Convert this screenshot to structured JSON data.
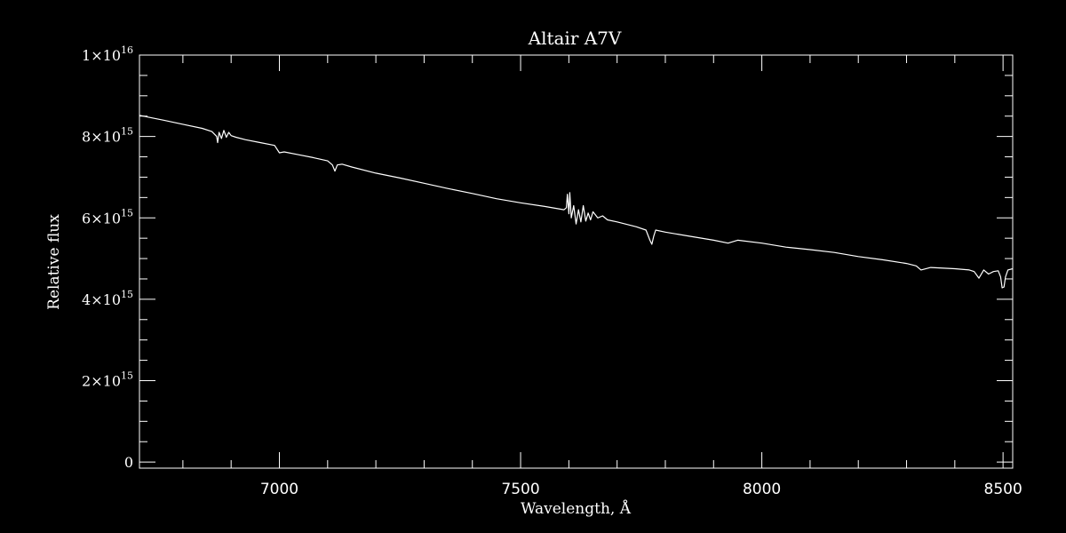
{
  "chart_data": {
    "type": "line",
    "title": "Altair   A7V",
    "xlabel": "Wavelength, Å",
    "ylabel": "Relative flux",
    "xlim": [
      6710,
      8520
    ],
    "ylim": [
      -150000000000000.0,
      1e+16
    ],
    "grid": false,
    "xticks": [
      {
        "value": 7000,
        "label": "7000"
      },
      {
        "value": 7500,
        "label": "7500"
      },
      {
        "value": 8000,
        "label": "8000"
      },
      {
        "value": 8500,
        "label": "8500"
      }
    ],
    "x_minor_step": 100,
    "yticks": [
      {
        "value": 0,
        "base": "0",
        "exp": ""
      },
      {
        "value": 2000000000000000.0,
        "base": "2×10",
        "exp": "15"
      },
      {
        "value": 4000000000000000.0,
        "base": "4×10",
        "exp": "15"
      },
      {
        "value": 6000000000000000.0,
        "base": "6×10",
        "exp": "15"
      },
      {
        "value": 8000000000000000.0,
        "base": "8×10",
        "exp": "15"
      },
      {
        "value": 1e+16,
        "base": "1×10",
        "exp": "16"
      }
    ],
    "y_minor_step": 500000000000000.0,
    "series": [
      {
        "color": "#ffffff",
        "x": [
          6710,
          6730,
          6760,
          6800,
          6840,
          6860,
          6870,
          6872,
          6875,
          6880,
          6885,
          6890,
          6895,
          6900,
          6910,
          6930,
          6960,
          6990,
          7000,
          7010,
          7040,
          7070,
          7100,
          7110,
          7115,
          7120,
          7130,
          7150,
          7200,
          7250,
          7300,
          7350,
          7400,
          7450,
          7500,
          7550,
          7590,
          7595,
          7597,
          7600,
          7602,
          7605,
          7610,
          7615,
          7620,
          7625,
          7630,
          7635,
          7640,
          7645,
          7650,
          7660,
          7670,
          7680,
          7700,
          7740,
          7760,
          7768,
          7772,
          7776,
          7780,
          7800,
          7850,
          7900,
          7930,
          7950,
          8000,
          8050,
          8100,
          8150,
          8200,
          8250,
          8300,
          8320,
          8330,
          8350,
          8400,
          8430,
          8440,
          8450,
          8460,
          8470,
          8480,
          8490,
          8495,
          8498,
          8502,
          8505,
          8510,
          8520
        ],
        "y": [
          8520000000000000.0,
          8470000000000000.0,
          8400000000000000.0,
          8300000000000000.0,
          8200000000000000.0,
          8120000000000000.0,
          8000000000000000.0,
          7850000000000000.0,
          8100000000000000.0,
          7950000000000000.0,
          8150000000000000.0,
          7980000000000000.0,
          8100000000000000.0,
          8020000000000000.0,
          7980000000000000.0,
          7920000000000000.0,
          7850000000000000.0,
          7780000000000000.0,
          7600000000000000.0,
          7620000000000000.0,
          7550000000000000.0,
          7480000000000000.0,
          7400000000000000.0,
          7300000000000000.0,
          7150000000000000.0,
          7300000000000000.0,
          7320000000000000.0,
          7250000000000000.0,
          7100000000000000.0,
          6980000000000000.0,
          6850000000000000.0,
          6720000000000000.0,
          6600000000000000.0,
          6470000000000000.0,
          6370000000000000.0,
          6280000000000000.0,
          6200000000000000.0,
          6250000000000000.0,
          6580000000000000.0,
          6100000000000000.0,
          6620000000000000.0,
          6000000000000000.0,
          6300000000000000.0,
          5850000000000000.0,
          6200000000000000.0,
          5900000000000000.0,
          6300000000000000.0,
          5920000000000000.0,
          6120000000000000.0,
          5950000000000000.0,
          6150000000000000.0,
          6000000000000000.0,
          6050000000000000.0,
          5950000000000000.0,
          5900000000000000.0,
          5780000000000000.0,
          5700000000000000.0,
          5450000000000000.0,
          5350000000000000.0,
          5550000000000000.0,
          5700000000000000.0,
          5650000000000000.0,
          5550000000000000.0,
          5450000000000000.0,
          5380000000000000.0,
          5450000000000000.0,
          5380000000000000.0,
          5280000000000000.0,
          5220000000000000.0,
          5150000000000000.0,
          5050000000000000.0,
          4970000000000000.0,
          4880000000000000.0,
          4820000000000000.0,
          4720000000000000.0,
          4780000000000000.0,
          4750000000000000.0,
          4720000000000000.0,
          4680000000000000.0,
          4520000000000000.0,
          4720000000000000.0,
          4620000000000000.0,
          4680000000000000.0,
          4700000000000000.0,
          4550000000000000.0,
          4280000000000000.0,
          4300000000000000.0,
          4550000000000000.0,
          4720000000000000.0,
          4750000000000000.0
        ]
      }
    ]
  }
}
